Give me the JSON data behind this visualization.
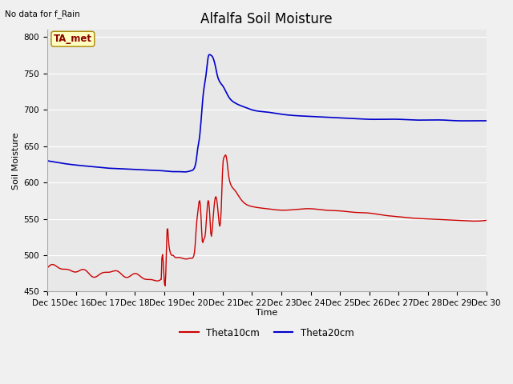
{
  "title": "Alfalfa Soil Moisture",
  "xlabel": "Time",
  "ylabel": "Soil Moisture",
  "no_data_label": "No data for f_Rain",
  "ta_met_label": "TA_met",
  "ylim": [
    450,
    810
  ],
  "yticks": [
    450,
    500,
    550,
    600,
    650,
    700,
    750,
    800
  ],
  "xlim": [
    0,
    15
  ],
  "bg_color": "#e8e8e8",
  "fig_color": "#f0f0f0",
  "line1_color": "#cc0000",
  "line2_color": "#0000cc",
  "legend_line1": "Theta10cm",
  "legend_line2": "Theta20cm",
  "xtick_labels": [
    "Dec 15",
    "Dec 16",
    "Dec 17",
    "Dec 18",
    "Dec 19",
    "Dec 20",
    "Dec 21",
    "Dec 22",
    "Dec 23",
    "Dec 24",
    "Dec 25",
    "Dec 26",
    "Dec 27",
    "Dec 28",
    "Dec 29",
    "Dec 30"
  ],
  "title_fontsize": 12,
  "label_fontsize": 8,
  "tick_fontsize": 7.5
}
